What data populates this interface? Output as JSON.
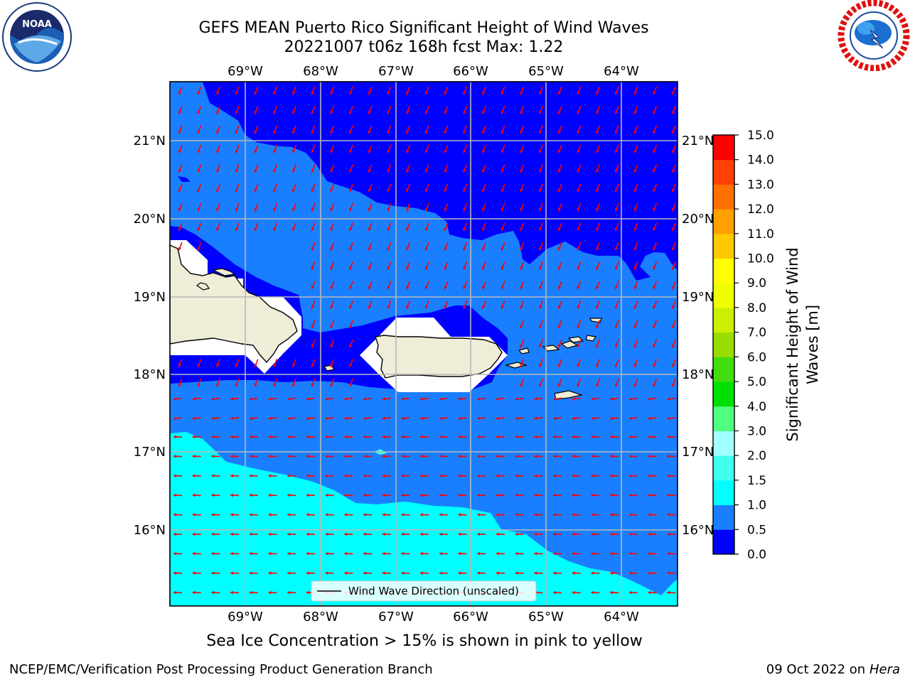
{
  "header": {
    "title_line1": "GEFS MEAN Puerto Rico Significant Height of Wind Waves",
    "title_line2": "20221007 t06z 168h fcst   Max: 1.22"
  },
  "logos": {
    "left": {
      "icon": "noaa-logo-icon",
      "text": "NOAA"
    },
    "right": {
      "icon": "nws-logo-icon",
      "text": "NATIONAL WEATHER SERVICE"
    }
  },
  "map": {
    "lon_labels": [
      "69°W",
      "68°W",
      "67°W",
      "66°W",
      "65°W",
      "64°W"
    ],
    "lat_labels": [
      "21°N",
      "20°N",
      "19°N",
      "18°N",
      "17°N",
      "16°N"
    ],
    "legend_label": "Wind Wave Direction (unscaled)",
    "arrow_color": "#ff0000",
    "land_color": "#efedd8"
  },
  "colorbar": {
    "label_line1": "Significant Height of Wind",
    "label_line2": "Waves [m]",
    "ticks": [
      "0.0",
      "0.5",
      "1.0",
      "1.5",
      "2.0",
      "3.0",
      "4.0",
      "5.0",
      "6.0",
      "7.0",
      "8.0",
      "9.0",
      "10.0",
      "11.0",
      "12.0",
      "13.0",
      "14.0",
      "15.0"
    ],
    "colors": [
      "#0000ff",
      "#1a7fff",
      "#00ffff",
      "#40ffee",
      "#a0ffff",
      "#50ff80",
      "#00e000",
      "#40dd10",
      "#99dd00",
      "#ccee00",
      "#eeff00",
      "#ffff00",
      "#ffc800",
      "#ffa000",
      "#ff7000",
      "#ff4000",
      "#ff0000"
    ]
  },
  "notes": {
    "ice": "Sea Ice Concentration > 15% is shown in pink to yellow",
    "footer_left": "NCEP/EMC/Verification Post Processing Product Generation Branch",
    "footer_date": "09 Oct 2022 on",
    "footer_host": "Hera"
  }
}
